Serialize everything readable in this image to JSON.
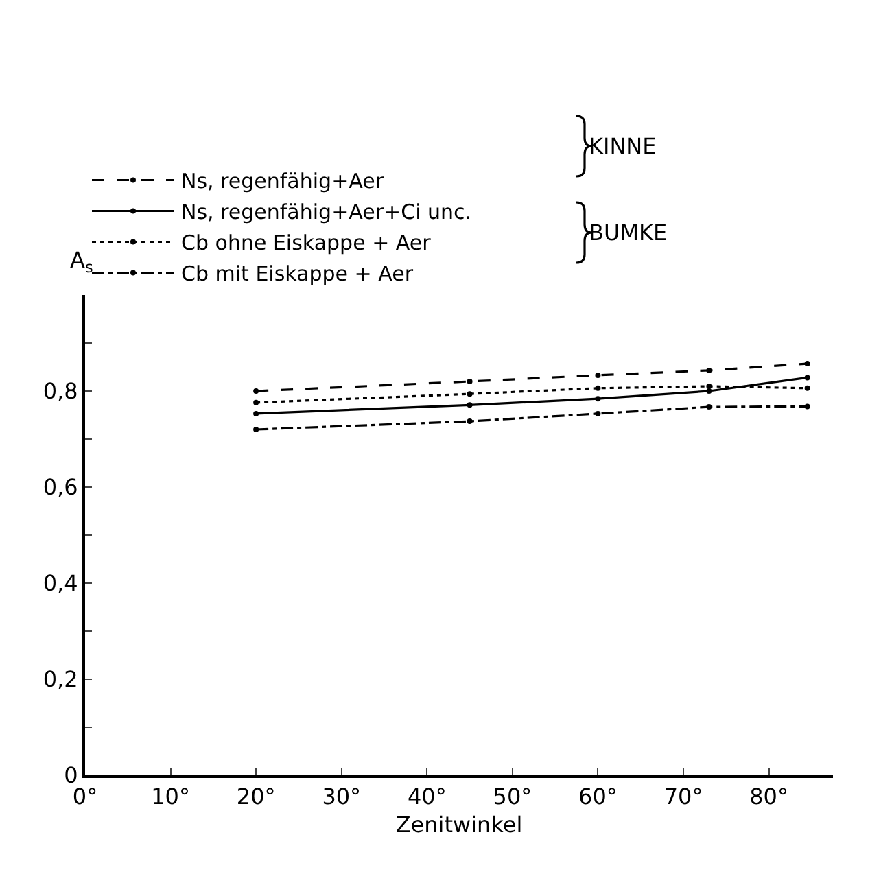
{
  "chart_data": {
    "type": "line",
    "xlabel": "Zenitwinkel",
    "ylabel": "A$_{s}$",
    "x": [
      20,
      45,
      60,
      73,
      84.5
    ],
    "xlim": [
      0,
      87.5
    ],
    "xticks": [
      {
        "value": 0,
        "label": "0°"
      },
      {
        "value": 10,
        "label": "10°"
      },
      {
        "value": 20,
        "label": "20°"
      },
      {
        "value": 30,
        "label": "30°"
      },
      {
        "value": 40,
        "label": "40°"
      },
      {
        "value": 50,
        "label": "50°"
      },
      {
        "value": 60,
        "label": "60°"
      },
      {
        "value": 70,
        "label": "70°"
      },
      {
        "value": 80,
        "label": "80°"
      }
    ],
    "ylim": [
      0,
      1.0
    ],
    "yticks": [
      {
        "value": 0,
        "label": "0"
      },
      {
        "value": 0.1,
        "label": null
      },
      {
        "value": 0.2,
        "label": "0,2"
      },
      {
        "value": 0.3,
        "label": null
      },
      {
        "value": 0.4,
        "label": "0,4"
      },
      {
        "value": 0.5,
        "label": null
      },
      {
        "value": 0.6,
        "label": "0,6"
      },
      {
        "value": 0.7,
        "label": null
      },
      {
        "value": 0.8,
        "label": "0,8"
      },
      {
        "value": 0.9,
        "label": null
      }
    ],
    "grid": false,
    "legend": "top left",
    "marker": "circle",
    "annotations": [
      "KINNE",
      "BUMKE"
    ],
    "series": [
      {
        "name": "Ns, regenfähig+Aer",
        "color": "#000000",
        "line_style": "dashed",
        "values": [
          0.8,
          0.82,
          0.833,
          0.843,
          0.857
        ]
      },
      {
        "name": "Ns, regenfähig+Aer+Ci unc.",
        "color": "#000000",
        "line_style": "solid",
        "values": [
          0.753,
          0.771,
          0.784,
          0.8,
          0.828
        ]
      },
      {
        "name": "Cb ohne Eiskappe + Aer",
        "color": "#000000",
        "line_style": "dotted",
        "values": [
          0.776,
          0.794,
          0.806,
          0.81,
          0.806
        ]
      },
      {
        "name": "Cb mit Eiskappe + Aer",
        "color": "#000000",
        "line_style": "dashdot",
        "values": [
          0.72,
          0.737,
          0.753,
          0.767,
          0.768
        ]
      }
    ]
  }
}
